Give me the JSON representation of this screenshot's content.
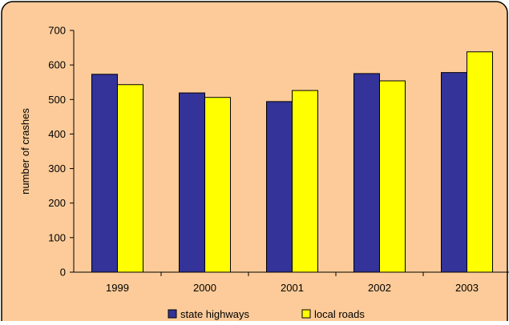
{
  "colors": {
    "background": "#FCCB99",
    "border": "#000000",
    "axis": "#000000"
  },
  "chart_data": {
    "type": "bar",
    "title": "",
    "xlabel": "",
    "ylabel": "number of crashes",
    "categories": [
      "1999",
      "2000",
      "2001",
      "2002",
      "2003"
    ],
    "ylim": [
      0,
      700
    ],
    "yticks": [
      "0",
      "100",
      "200",
      "300",
      "400",
      "500",
      "600",
      "700"
    ],
    "grid": false,
    "legend_position": "bottom",
    "series": [
      {
        "name": "state highways",
        "color": "#333399",
        "values": [
          573,
          519,
          494,
          575,
          578
        ]
      },
      {
        "name": "local roads",
        "color": "#FFFF00",
        "values": [
          543,
          506,
          526,
          554,
          638
        ]
      }
    ]
  }
}
